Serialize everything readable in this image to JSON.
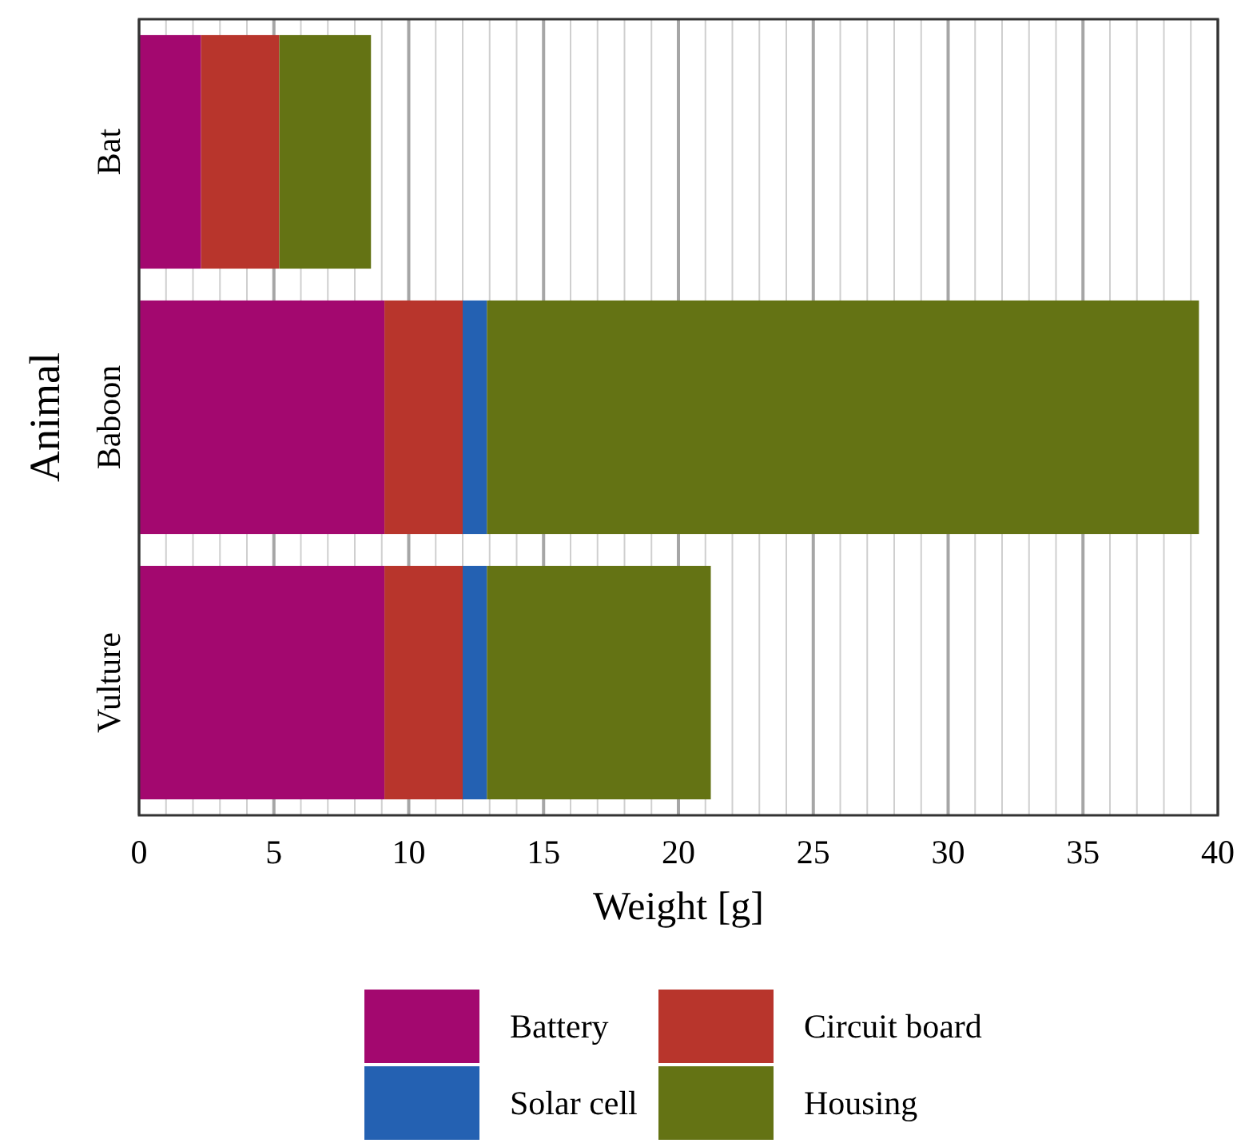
{
  "chart_data": {
    "type": "bar",
    "orientation": "horizontal",
    "stacked": true,
    "xlabel": "Weight [g]",
    "ylabel": "Animal",
    "categories": [
      "Bat",
      "Baboon",
      "Vulture"
    ],
    "series": [
      {
        "name": "Battery",
        "color": "#a3086f",
        "values": [
          2.3,
          9.1,
          9.1
        ]
      },
      {
        "name": "Circuit board",
        "color": "#b8352c",
        "values": [
          2.9,
          2.9,
          2.9
        ]
      },
      {
        "name": "Solar cell",
        "color": "#2461b2",
        "values": [
          null,
          0.9,
          0.9
        ]
      },
      {
        "name": "Housing",
        "color": "#647314",
        "values": [
          3.4,
          26.4,
          8.3
        ]
      }
    ],
    "xlim": [
      0,
      40
    ],
    "xticks": [
      0,
      {
        "value": 1,
        "label": null
      },
      {
        "value": 2,
        "label": null
      },
      {
        "value": 3,
        "label": null
      },
      {
        "value": 4,
        "label": null
      },
      5,
      {
        "value": 6,
        "label": null
      },
      {
        "value": 7,
        "label": null
      },
      {
        "value": 8,
        "label": null
      },
      {
        "value": 9,
        "label": null
      },
      10,
      {
        "value": 11,
        "label": null
      },
      {
        "value": 12,
        "label": null
      },
      {
        "value": 13,
        "label": null
      },
      {
        "value": 14,
        "label": null
      },
      15,
      {
        "value": 16,
        "label": null
      },
      {
        "value": 17,
        "label": null
      },
      {
        "value": 18,
        "label": null
      },
      {
        "value": 19,
        "label": null
      },
      20,
      {
        "value": 21,
        "label": null
      },
      {
        "value": 22,
        "label": null
      },
      {
        "value": 23,
        "label": null
      },
      {
        "value": 24,
        "label": null
      },
      25,
      {
        "value": 26,
        "label": null
      },
      {
        "value": 27,
        "label": null
      },
      {
        "value": 28,
        "label": null
      },
      {
        "value": 29,
        "label": null
      },
      30,
      {
        "value": 31,
        "label": null
      },
      {
        "value": 32,
        "label": null
      },
      {
        "value": 33,
        "label": null
      },
      {
        "value": 34,
        "label": null
      },
      35,
      {
        "value": 36,
        "label": null
      },
      {
        "value": 37,
        "label": null
      },
      {
        "value": 38,
        "label": null
      },
      {
        "value": 39,
        "label": null
      },
      40
    ],
    "grid": "x",
    "legend": "bottom"
  }
}
